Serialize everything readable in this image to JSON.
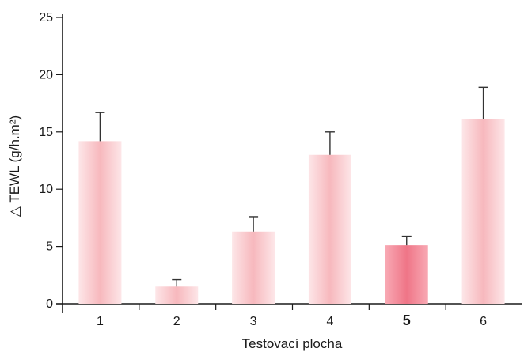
{
  "chart_data": {
    "type": "bar",
    "title": "",
    "xlabel": "Testovací plocha",
    "ylabel": "△ TEWL (g/h.m²)",
    "categories": [
      "1",
      "2",
      "3",
      "4",
      "5",
      "6"
    ],
    "highlighted_category": "5",
    "series": [
      {
        "values": [
          14.2,
          1.5,
          6.3,
          13.0,
          5.1,
          16.1
        ],
        "error": [
          2.5,
          0.6,
          1.3,
          2.0,
          0.8,
          2.8
        ]
      }
    ],
    "ylim": [
      0,
      25
    ],
    "yticks": [
      0,
      5,
      10,
      15,
      20,
      25
    ],
    "grid": false,
    "legend": "none",
    "colors": {
      "bar": "#f9c0c4",
      "bar_highlight": "#f28595",
      "axis": "#1a1a1a",
      "error_bar": "#333333"
    }
  }
}
